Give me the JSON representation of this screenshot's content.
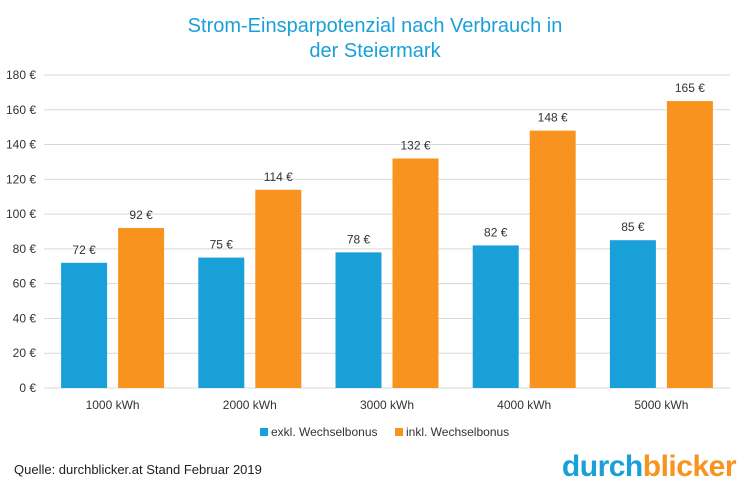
{
  "title_lines": [
    "Strom-Einsparpotenzial  nach Verbrauch in",
    "der Steiermark"
  ],
  "source": "Quelle: durchblicker.at Stand Februar 2019",
  "logo": {
    "part1": "durch",
    "part2": "blicker",
    "color1": "#1aa0d9",
    "color2": "#f7931e"
  },
  "chart_data": {
    "type": "bar",
    "title": "Strom-Einsparpotenzial  nach Verbrauch in der Steiermark",
    "categories": [
      "1000 kWh",
      "2000 kWh",
      "3000 kWh",
      "4000 kWh",
      "5000 kWh"
    ],
    "series": [
      {
        "name": "exkl. Wechselbonus",
        "color": "#1aa0d9",
        "values": [
          72,
          75,
          78,
          82,
          85
        ],
        "labels": [
          "72 €",
          "75 €",
          "78 €",
          "82 €",
          "85 €"
        ]
      },
      {
        "name": "inkl. Wechselbonus",
        "color": "#f7931e",
        "values": [
          92,
          114,
          132,
          148,
          165
        ],
        "labels": [
          "92 €",
          "114 €",
          "132 €",
          "148 €",
          "165 €"
        ]
      }
    ],
    "yticks": [
      0,
      20,
      40,
      60,
      80,
      100,
      120,
      140,
      160,
      180
    ],
    "ytick_labels": [
      "0 €",
      "20 €",
      "40 €",
      "60 €",
      "80 €",
      "100 €",
      "120 €",
      "140 €",
      "160 €",
      "180 €"
    ],
    "ylim": [
      0,
      180
    ],
    "grid": true,
    "legend": "bottom"
  }
}
